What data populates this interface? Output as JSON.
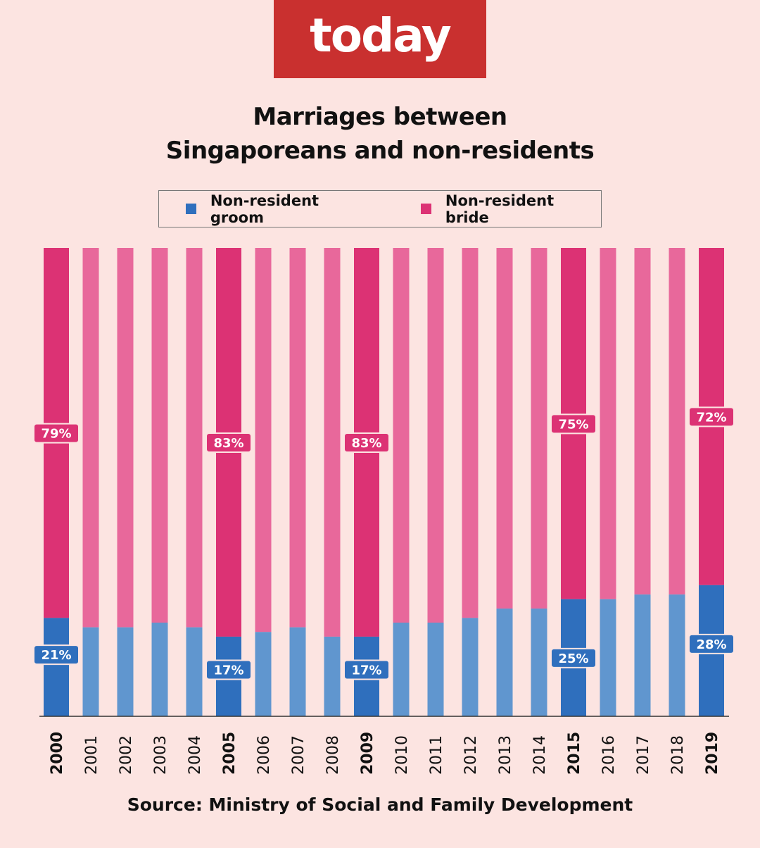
{
  "logo": "today",
  "chart_data": {
    "type": "bar",
    "stacked": true,
    "title_line1": "Marriages between",
    "title_line2": "Singaporeans and non-residents",
    "categories": [
      "2000",
      "2001",
      "2002",
      "2003",
      "2004",
      "2005",
      "2006",
      "2007",
      "2008",
      "2009",
      "2010",
      "2011",
      "2012",
      "2013",
      "2014",
      "2015",
      "2016",
      "2017",
      "2018",
      "2019"
    ],
    "highlighted": [
      "2000",
      "2005",
      "2009",
      "2015",
      "2019"
    ],
    "series": [
      {
        "name": "Non-resident groom",
        "color": "#2f6fbd",
        "light_color": "#6096cf",
        "values": [
          21,
          19,
          19,
          20,
          19,
          17,
          18,
          19,
          17,
          17,
          20,
          20,
          21,
          23,
          23,
          25,
          25,
          26,
          26,
          28
        ]
      },
      {
        "name": "Non-resident bride",
        "color": "#dc3274",
        "light_color": "#e8689b",
        "values": [
          79,
          81,
          81,
          80,
          81,
          83,
          82,
          81,
          83,
          83,
          80,
          80,
          79,
          77,
          77,
          75,
          75,
          74,
          74,
          72
        ]
      }
    ],
    "data_labels": {
      "2000": [
        "21%",
        "79%"
      ],
      "2005": [
        "17%",
        "83%"
      ],
      "2009": [
        "17%",
        "83%"
      ],
      "2015": [
        "25%",
        "75%"
      ],
      "2019": [
        "28%",
        "72%"
      ]
    },
    "ylim": [
      0,
      100
    ],
    "legend": "top",
    "grid": false
  },
  "source": "Source: Ministry of Social and Family Development"
}
